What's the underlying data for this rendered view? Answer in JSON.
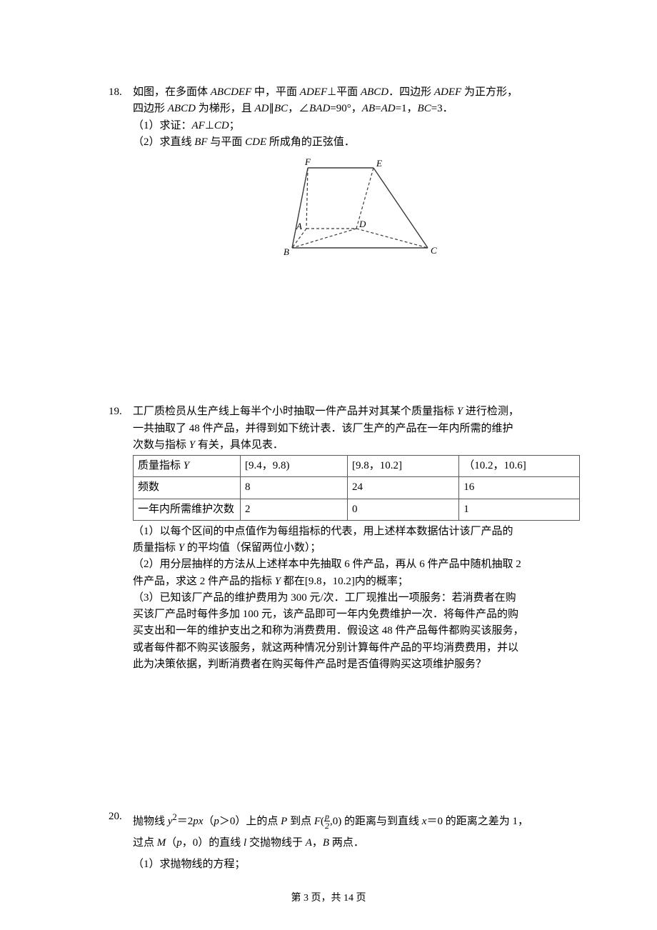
{
  "page": {
    "footer": "第 3 页，共 14 页"
  },
  "p18": {
    "num": "18.",
    "l1": "如图，在多面体 <i>ABCDEF</i> 中，平面 <i>ADEF</i>⊥平面 <i>ABCD</i>．四边形 <i>ADEF</i> 为正方形，",
    "l2": "四边形 <i>ABCD</i> 为梯形，且 <i>AD</i>∥<i>BC</i>，∠<i>BAD</i>=90°，<i>AB</i>=<i>AD</i>=1，<i>BC</i>=3．",
    "l3": "（1）求证：<i>AF</i>⊥<i>CD</i>；",
    "l4": "（2）求直线 <i>BF</i> 与平面 <i>CDE</i> 所成角的正弦值．",
    "figure": {
      "labels": {
        "A": "A",
        "B": "B",
        "C": "C",
        "D": "D",
        "E": "E",
        "F": "F"
      },
      "stroke": "#3a3a3a",
      "dash": "4,3"
    }
  },
  "p19": {
    "num": "19.",
    "l1": "工厂质检员从生产线上每半个小时抽取一件产品并对其某个质量指标 <i>Y</i> 进行检测，",
    "l2": "一共抽取了 48 件产品，并得到如下统计表．该厂生产的产品在一年内所需的维护",
    "l3": "次数与指标 <i>Y</i> 有关，具体见表．",
    "table": {
      "rows": [
        [
          "质量指标 Y",
          "[9.4，9.8)",
          "[9.8，10.2]",
          "（10.2，10.6]"
        ],
        [
          "频数",
          "8",
          "24",
          "16"
        ],
        [
          "一年内所需维护次数",
          "2",
          "0",
          "1"
        ]
      ],
      "col_widths": [
        "24%",
        "24%",
        "25%",
        "27%"
      ]
    },
    "s1a": "（1）以每个区间的中点值作为每组指标的代表，用上述样本数据估计该厂产品的",
    "s1b": "质量指标 <i>Y</i> 的平均值（保留两位小数）；",
    "s2a": "（2）用分层抽样的方法从上述样本中先抽取 6 件产品，再从 6 件产品中随机抽取 2",
    "s2b": "件产品，求这 2 件产品的指标 <i>Y</i> 都在[9.8，10.2]内的概率；",
    "s3a": "（3）已知该厂产品的维护费用为 300 元/次．工厂现推出一项服务：若消费者在购",
    "s3b": "买该厂产品时每件多加 100 元，该产品即可一年内免费维护一次．将每件产品的购",
    "s3c": "买支出和一年的维护支出之和称为消费费用．假设这 48 件产品每件都购买该服务，",
    "s3d": "或者每件都不购买该服务，就这两种情况分别计算每件产品的平均消费费用，并以",
    "s3e": "此为决策依据，判断消费者在购买每件产品时是否值得购买这项维护服务？"
  },
  "p20": {
    "num": "20.",
    "l1_a": "抛物线 <i>y</i><sup>2</sup>＝2<i>px</i>（<i>p</i>＞0）上的点 <i>P</i> 到点 <i>F</i>(",
    "l1_b": ",0) 的距离与到直线 <i>x</i>＝0 的距离之差为 1，",
    "frac_num": "p",
    "frac_den": "2",
    "l2": "过点 <i>M</i>（<i>p</i>，0）的直线 <i>l</i> 交抛物线于 <i>A</i>，<i>B</i> 两点．",
    "l3": "（1）求抛物线的方程；"
  }
}
